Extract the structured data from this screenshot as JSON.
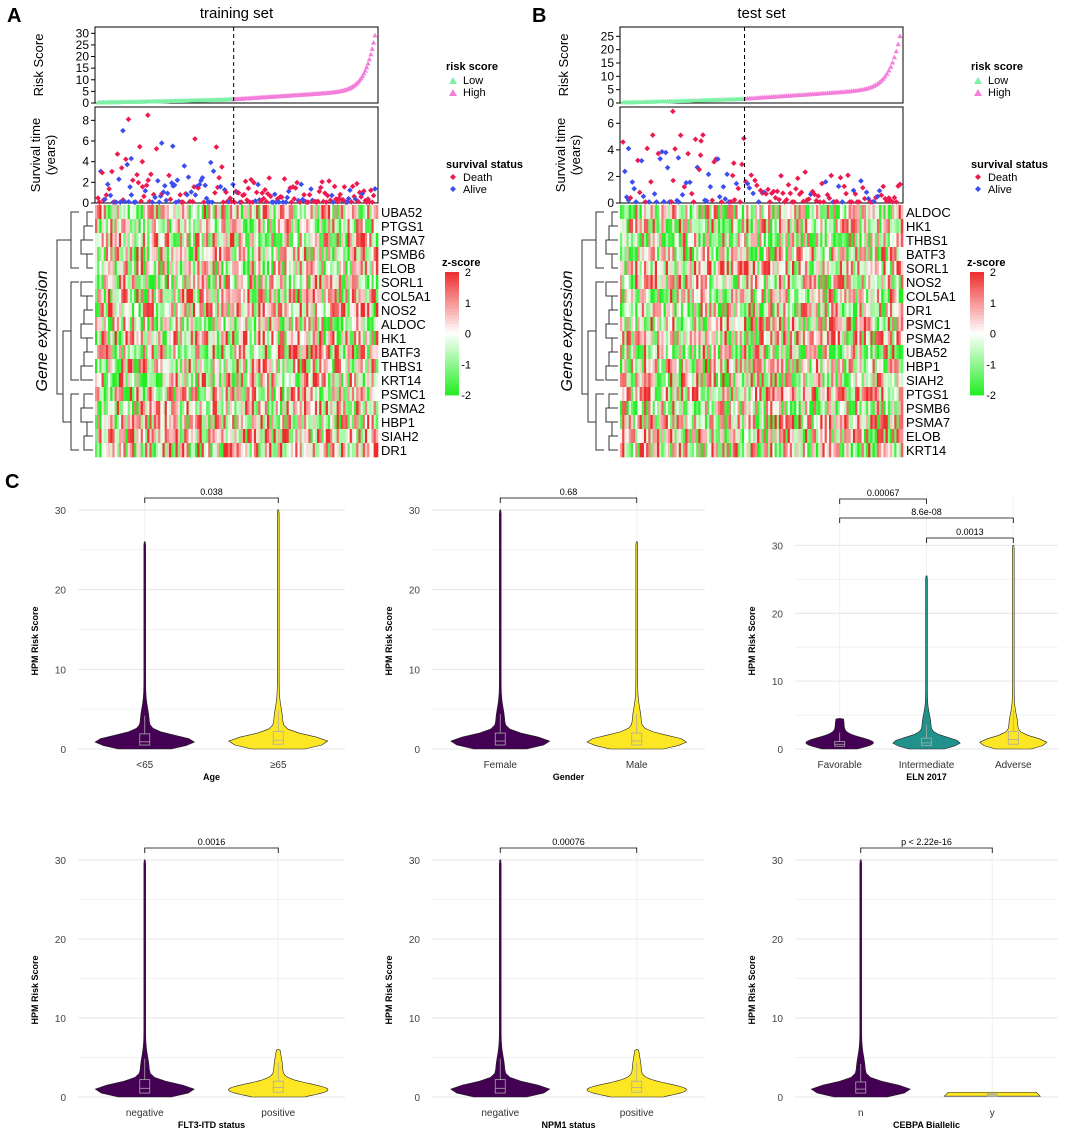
{
  "panels": {
    "A": {
      "letter": "A",
      "title": "training set",
      "risk_axis": {
        "label": "Risk Score",
        "ticks": [
          0,
          5,
          10,
          15,
          20,
          25,
          30
        ],
        "ymax": 31
      },
      "risk_legend": {
        "title": "risk score",
        "low": "Low",
        "high": "High"
      },
      "surv_axis": {
        "label_lines": [
          "Survival time",
          "(years)"
        ],
        "ticks": [
          0,
          2,
          4,
          6,
          8
        ],
        "ymax": 9
      },
      "surv_legend": {
        "title": "survival status",
        "death": "Death",
        "alive": "Alive"
      },
      "genes": [
        "UBA52",
        "PTGS1",
        "PSMA7",
        "PSMB6",
        "ELOB",
        "SORL1",
        "COL5A1",
        "NOS2",
        "ALDOC",
        "HK1",
        "BATF3",
        "THBS1",
        "KRT14",
        "PSMC1",
        "PSMA2",
        "HBP1",
        "SIAH2",
        "DR1"
      ],
      "heatmap_ylabel": "Gene expression",
      "zscore": {
        "title": "z-score",
        "ticks": [
          "2",
          "1",
          "0",
          "-1",
          "-2"
        ]
      },
      "colors": {
        "low": "#7ff0a6",
        "high": "#f47fdb",
        "death": "#ee1a4e",
        "alive": "#3b4ef0",
        "z_high": "#ee2c2c",
        "z_mid": "#ffffff",
        "z_low": "#22ee22"
      }
    },
    "B": {
      "letter": "B",
      "title": "test set",
      "risk_axis": {
        "label": "Risk Score",
        "ticks": [
          0,
          5,
          10,
          15,
          20,
          25
        ],
        "ymax": 27
      },
      "risk_legend": {
        "title": "risk score",
        "low": "Low",
        "high": "High"
      },
      "surv_axis": {
        "label_lines": [
          "Survival time",
          "(years)"
        ],
        "ticks": [
          0,
          2,
          4,
          6
        ],
        "ymax": 7
      },
      "surv_legend": {
        "title": "survival status",
        "death": "Death",
        "alive": "Alive"
      },
      "genes": [
        "ALDOC",
        "HK1",
        "THBS1",
        "BATF3",
        "SORL1",
        "NOS2",
        "COL5A1",
        "DR1",
        "PSMC1",
        "PSMA2",
        "UBA52",
        "HBP1",
        "SIAH2",
        "PTGS1",
        "PSMB6",
        "PSMA7",
        "ELOB",
        "KRT14"
      ],
      "heatmap_ylabel": "Gene expression",
      "zscore": {
        "title": "z-score",
        "ticks": [
          "2",
          "1",
          "0",
          "-1",
          "-2"
        ]
      },
      "colors": {
        "low": "#7ff0a6",
        "high": "#f47fdb",
        "death": "#ee1a4e",
        "alive": "#3b4ef0",
        "z_high": "#ee2c2c",
        "z_mid": "#ffffff",
        "z_low": "#22ee22"
      }
    },
    "C": {
      "letter": "C"
    }
  },
  "chart_data": [
    {
      "type": "scatter",
      "title": "training set",
      "ylabel": "Risk Score",
      "ylim": [
        0,
        31
      ],
      "series": [
        {
          "name": "Low",
          "description": "sorted risk scores, roughly 0.2 to 1.6",
          "range": [
            0.2,
            1.6
          ]
        },
        {
          "name": "High",
          "description": "sorted risk scores, roughly 1.6 to 30",
          "range": [
            1.6,
            30
          ]
        }
      ]
    },
    {
      "type": "scatter",
      "title": "training set",
      "ylabel": "Survival time (years)",
      "ylim": [
        0,
        9
      ],
      "series": [
        {
          "name": "Death"
        },
        {
          "name": "Alive"
        }
      ],
      "notable_points": [
        8.5,
        8.1,
        7.0,
        6.2,
        5.8,
        5.5,
        4.3,
        4.0
      ]
    },
    {
      "type": "heatmap",
      "title": "training set",
      "rows": [
        "UBA52",
        "PTGS1",
        "PSMA7",
        "PSMB6",
        "ELOB",
        "SORL1",
        "COL5A1",
        "NOS2",
        "ALDOC",
        "HK1",
        "BATF3",
        "THBS1",
        "KRT14",
        "PSMC1",
        "PSMA2",
        "HBP1",
        "SIAH2",
        "DR1"
      ],
      "value_range": [
        -2,
        2
      ]
    },
    {
      "type": "scatter",
      "title": "test set",
      "ylabel": "Risk Score",
      "ylim": [
        0,
        27
      ],
      "series": [
        {
          "name": "Low",
          "range": [
            0.2,
            1.6
          ]
        },
        {
          "name": "High",
          "range": [
            1.6,
            26
          ]
        }
      ]
    },
    {
      "type": "scatter",
      "title": "test set",
      "ylabel": "Survival time (years)",
      "ylim": [
        0,
        7
      ],
      "series": [
        {
          "name": "Death"
        },
        {
          "name": "Alive"
        }
      ],
      "notable_points": [
        6.9,
        4.2,
        3.6,
        3.4,
        3.0
      ]
    },
    {
      "type": "heatmap",
      "title": "test set",
      "rows": [
        "ALDOC",
        "HK1",
        "THBS1",
        "BATF3",
        "SORL1",
        "NOS2",
        "COL5A1",
        "DR1",
        "PSMC1",
        "PSMA2",
        "UBA52",
        "HBP1",
        "SIAH2",
        "PTGS1",
        "PSMB6",
        "PSMA7",
        "ELOB",
        "KRT14"
      ],
      "value_range": [
        -2,
        2
      ]
    },
    {
      "type": "violin",
      "ylabel": "HPM Risk Score",
      "xlabel": "Age",
      "categories": [
        "<65",
        "≥65"
      ],
      "colors": [
        "#440154",
        "#fde725"
      ],
      "max": [
        26,
        30
      ],
      "median": [
        0.9,
        1.1
      ],
      "q1": [
        0.5,
        0.6
      ],
      "q3": [
        1.9,
        2.2
      ],
      "comparisons": [
        {
          "pair": [
            "<65",
            "≥65"
          ],
          "p": "0.038"
        }
      ],
      "ylim": [
        0,
        31
      ]
    },
    {
      "type": "violin",
      "ylabel": "HPM Risk Score",
      "xlabel": "Gender",
      "categories": [
        "Female",
        "Male"
      ],
      "colors": [
        "#440154",
        "#fde725"
      ],
      "max": [
        30,
        26
      ],
      "median": [
        1.0,
        1.0
      ],
      "q1": [
        0.5,
        0.5
      ],
      "q3": [
        2.0,
        2.0
      ],
      "comparisons": [
        {
          "pair": [
            "Female",
            "Male"
          ],
          "p": "0.68"
        }
      ],
      "ylim": [
        0,
        31
      ]
    },
    {
      "type": "violin",
      "ylabel": "HPM Risk Score",
      "xlabel": "ELN 2017",
      "categories": [
        "Favorable",
        "Intermediate",
        "Adverse"
      ],
      "colors": [
        "#440154",
        "#21918c",
        "#fde725"
      ],
      "max": [
        4.5,
        25.5,
        30
      ],
      "median": [
        0.7,
        0.9,
        1.4
      ],
      "q1": [
        0.4,
        0.5,
        0.7
      ],
      "q3": [
        1.1,
        1.6,
        2.6
      ],
      "comparisons": [
        {
          "pair": [
            "Favorable",
            "Intermediate"
          ],
          "p": "0.00067"
        },
        {
          "pair": [
            "Favorable",
            "Adverse"
          ],
          "p": "8.6e-08"
        },
        {
          "pair": [
            "Intermediate",
            "Adverse"
          ],
          "p": "0.0013"
        }
      ],
      "ylim": [
        0,
        36
      ]
    },
    {
      "type": "violin",
      "ylabel": "HPM Risk Score",
      "xlabel": "FLT3-ITD status",
      "categories": [
        "negative",
        "positive"
      ],
      "colors": [
        "#440154",
        "#fde725"
      ],
      "max": [
        30,
        6
      ],
      "median": [
        1.1,
        1.2
      ],
      "q1": [
        0.5,
        0.6
      ],
      "q3": [
        2.2,
        2.0
      ],
      "comparisons": [
        {
          "pair": [
            "negative",
            "positive"
          ],
          "p": "0.0016"
        }
      ],
      "ylim": [
        0,
        31
      ]
    },
    {
      "type": "violin",
      "ylabel": "HPM Risk Score",
      "xlabel": "NPM1 status",
      "categories": [
        "negative",
        "positive"
      ],
      "colors": [
        "#440154",
        "#fde725"
      ],
      "max": [
        30,
        6
      ],
      "median": [
        1.1,
        1.2
      ],
      "q1": [
        0.5,
        0.6
      ],
      "q3": [
        2.2,
        2.0
      ],
      "comparisons": [
        {
          "pair": [
            "negative",
            "positive"
          ],
          "p": "0.00076"
        }
      ],
      "ylim": [
        0,
        31
      ]
    },
    {
      "type": "violin",
      "ylabel": "HPM Risk Score",
      "xlabel": "CEBPA Biallelic",
      "categories": [
        "n",
        "y"
      ],
      "colors": [
        "#440154",
        "#fde725"
      ],
      "max": [
        30,
        0.5
      ],
      "median": [
        1.0,
        0.3
      ],
      "q1": [
        0.5,
        0.2
      ],
      "q3": [
        1.9,
        0.4
      ],
      "comparisons": [
        {
          "pair": [
            "n",
            "y"
          ],
          "p": "p < 2.22e-16"
        }
      ],
      "ylim": [
        0,
        31
      ]
    }
  ]
}
